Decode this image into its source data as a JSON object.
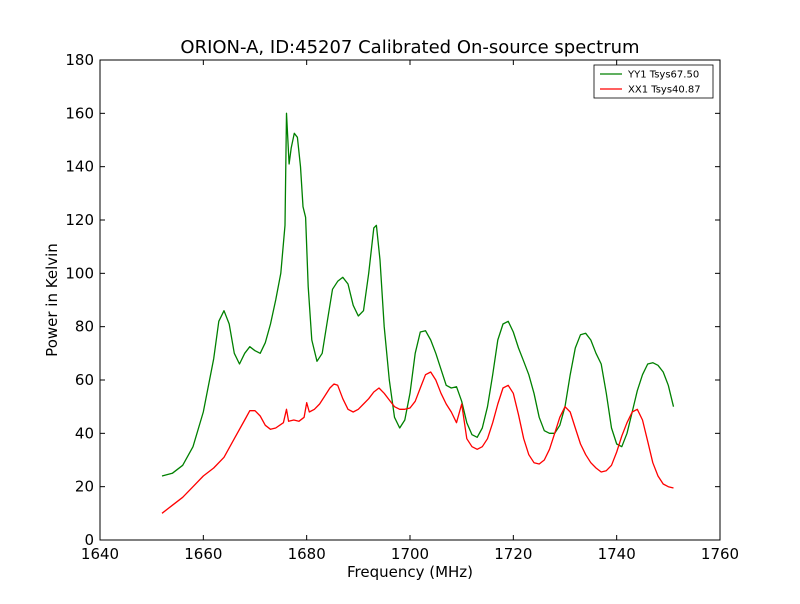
{
  "chart_data": {
    "type": "line",
    "title": "ORION-A, ID:45207 Calibrated On-source spectrum",
    "xlabel": "Frequency (MHz)",
    "ylabel": "Power in Kelvin",
    "xlim": [
      1640,
      1760
    ],
    "ylim": [
      0,
      180
    ],
    "xticks": [
      "1640",
      "1660",
      "1680",
      "1700",
      "1720",
      "1740",
      "1760"
    ],
    "yticks": [
      "0",
      "20",
      "40",
      "60",
      "80",
      "100",
      "120",
      "140",
      "160",
      "180"
    ],
    "grid": false,
    "legend_position": "top-right",
    "series": [
      {
        "name": "YY1 Tsys67.50",
        "color": "#008000",
        "points": [
          [
            1652,
            24
          ],
          [
            1654,
            25
          ],
          [
            1656,
            28
          ],
          [
            1658,
            35
          ],
          [
            1660,
            48
          ],
          [
            1662,
            68
          ],
          [
            1663,
            82
          ],
          [
            1664,
            86
          ],
          [
            1665,
            81
          ],
          [
            1666,
            70
          ],
          [
            1667,
            66
          ],
          [
            1668,
            70
          ],
          [
            1669,
            72.5
          ],
          [
            1670,
            71
          ],
          [
            1671,
            70
          ],
          [
            1672,
            74
          ],
          [
            1673,
            81
          ],
          [
            1674,
            90
          ],
          [
            1675,
            100
          ],
          [
            1675.8,
            118
          ],
          [
            1676.1,
            160
          ],
          [
            1676.6,
            141
          ],
          [
            1677,
            147
          ],
          [
            1677.6,
            152.5
          ],
          [
            1678.2,
            151
          ],
          [
            1678.8,
            140
          ],
          [
            1679.3,
            125
          ],
          [
            1679.8,
            121
          ],
          [
            1680.3,
            95
          ],
          [
            1681,
            75
          ],
          [
            1682,
            67
          ],
          [
            1683,
            70
          ],
          [
            1684,
            82
          ],
          [
            1685,
            94
          ],
          [
            1686,
            97
          ],
          [
            1687,
            98.5
          ],
          [
            1688,
            96
          ],
          [
            1689,
            88
          ],
          [
            1690,
            84
          ],
          [
            1691,
            86
          ],
          [
            1692,
            100
          ],
          [
            1693,
            117
          ],
          [
            1693.5,
            118
          ],
          [
            1694.2,
            105
          ],
          [
            1695,
            80
          ],
          [
            1696,
            60
          ],
          [
            1697,
            46
          ],
          [
            1698,
            42
          ],
          [
            1699,
            45
          ],
          [
            1700,
            55
          ],
          [
            1701,
            70
          ],
          [
            1702,
            78
          ],
          [
            1703,
            78.5
          ],
          [
            1704,
            75
          ],
          [
            1705,
            70
          ],
          [
            1706,
            64
          ],
          [
            1707,
            58
          ],
          [
            1708,
            57
          ],
          [
            1709,
            57.5
          ],
          [
            1710,
            52
          ],
          [
            1711,
            44
          ],
          [
            1712,
            39.5
          ],
          [
            1713,
            38.5
          ],
          [
            1714,
            42
          ],
          [
            1715,
            50
          ],
          [
            1716,
            62
          ],
          [
            1717,
            75
          ],
          [
            1718,
            81
          ],
          [
            1719,
            82
          ],
          [
            1720,
            78
          ],
          [
            1721,
            72
          ],
          [
            1722,
            67
          ],
          [
            1723,
            62
          ],
          [
            1724,
            55
          ],
          [
            1725,
            46
          ],
          [
            1726,
            41
          ],
          [
            1727,
            40
          ],
          [
            1728,
            40
          ],
          [
            1729,
            43
          ],
          [
            1730,
            50
          ],
          [
            1731,
            62
          ],
          [
            1732,
            72
          ],
          [
            1733,
            77
          ],
          [
            1734,
            77.5
          ],
          [
            1735,
            75
          ],
          [
            1736,
            70
          ],
          [
            1737,
            66
          ],
          [
            1738,
            55
          ],
          [
            1739,
            42
          ],
          [
            1740,
            36
          ],
          [
            1741,
            35
          ],
          [
            1742,
            40
          ],
          [
            1743,
            48
          ],
          [
            1744,
            56
          ],
          [
            1745,
            62
          ],
          [
            1746,
            66
          ],
          [
            1747,
            66.5
          ],
          [
            1748,
            65.5
          ],
          [
            1749,
            63
          ],
          [
            1750,
            58
          ],
          [
            1751,
            50
          ]
        ]
      },
      {
        "name": "XX1 Tsys40.87",
        "color": "#ff0000",
        "points": [
          [
            1652,
            10
          ],
          [
            1654,
            13
          ],
          [
            1656,
            16
          ],
          [
            1658,
            20
          ],
          [
            1660,
            24
          ],
          [
            1662,
            27
          ],
          [
            1664,
            31
          ],
          [
            1666,
            38
          ],
          [
            1668,
            45
          ],
          [
            1669,
            48.5
          ],
          [
            1670,
            48.5
          ],
          [
            1671,
            46.5
          ],
          [
            1672,
            43
          ],
          [
            1673,
            41.5
          ],
          [
            1674,
            42
          ],
          [
            1675.5,
            44
          ],
          [
            1676.1,
            49
          ],
          [
            1676.5,
            44.5
          ],
          [
            1677.5,
            45
          ],
          [
            1678.5,
            44.5
          ],
          [
            1679.5,
            46
          ],
          [
            1680,
            51.5
          ],
          [
            1680.5,
            48
          ],
          [
            1681.5,
            49
          ],
          [
            1682.5,
            51
          ],
          [
            1683.5,
            54
          ],
          [
            1684.5,
            57
          ],
          [
            1685.3,
            58.5
          ],
          [
            1686,
            58
          ],
          [
            1687,
            53
          ],
          [
            1688,
            49
          ],
          [
            1689,
            48
          ],
          [
            1690,
            49
          ],
          [
            1691,
            51
          ],
          [
            1692,
            53
          ],
          [
            1693,
            55.5
          ],
          [
            1694,
            57
          ],
          [
            1695,
            55
          ],
          [
            1696,
            52.5
          ],
          [
            1697,
            50
          ],
          [
            1698,
            49
          ],
          [
            1699,
            49
          ],
          [
            1700,
            49.5
          ],
          [
            1701,
            52
          ],
          [
            1702,
            57
          ],
          [
            1703,
            62
          ],
          [
            1704,
            63
          ],
          [
            1705,
            60
          ],
          [
            1706,
            55
          ],
          [
            1707,
            51
          ],
          [
            1708,
            48
          ],
          [
            1709,
            44
          ],
          [
            1710,
            51
          ],
          [
            1711,
            38
          ],
          [
            1712,
            35
          ],
          [
            1713,
            34
          ],
          [
            1714,
            35
          ],
          [
            1715,
            38
          ],
          [
            1716,
            44
          ],
          [
            1717,
            51
          ],
          [
            1718,
            57
          ],
          [
            1719,
            58
          ],
          [
            1720,
            55
          ],
          [
            1721,
            47
          ],
          [
            1722,
            38
          ],
          [
            1723,
            32
          ],
          [
            1724,
            29
          ],
          [
            1725,
            28.5
          ],
          [
            1726,
            30
          ],
          [
            1727,
            34
          ],
          [
            1728,
            40
          ],
          [
            1729,
            46
          ],
          [
            1730,
            50
          ],
          [
            1731,
            48
          ],
          [
            1732,
            42
          ],
          [
            1733,
            36
          ],
          [
            1734,
            32
          ],
          [
            1735,
            29
          ],
          [
            1736,
            27
          ],
          [
            1737,
            25.5
          ],
          [
            1738,
            26
          ],
          [
            1739,
            28
          ],
          [
            1740,
            33
          ],
          [
            1741,
            39
          ],
          [
            1742,
            44
          ],
          [
            1743,
            48
          ],
          [
            1744,
            49
          ],
          [
            1745,
            45
          ],
          [
            1746,
            37
          ],
          [
            1747,
            29
          ],
          [
            1748,
            24
          ],
          [
            1749,
            21
          ],
          [
            1750,
            20
          ],
          [
            1751,
            19.5
          ]
        ]
      }
    ]
  }
}
